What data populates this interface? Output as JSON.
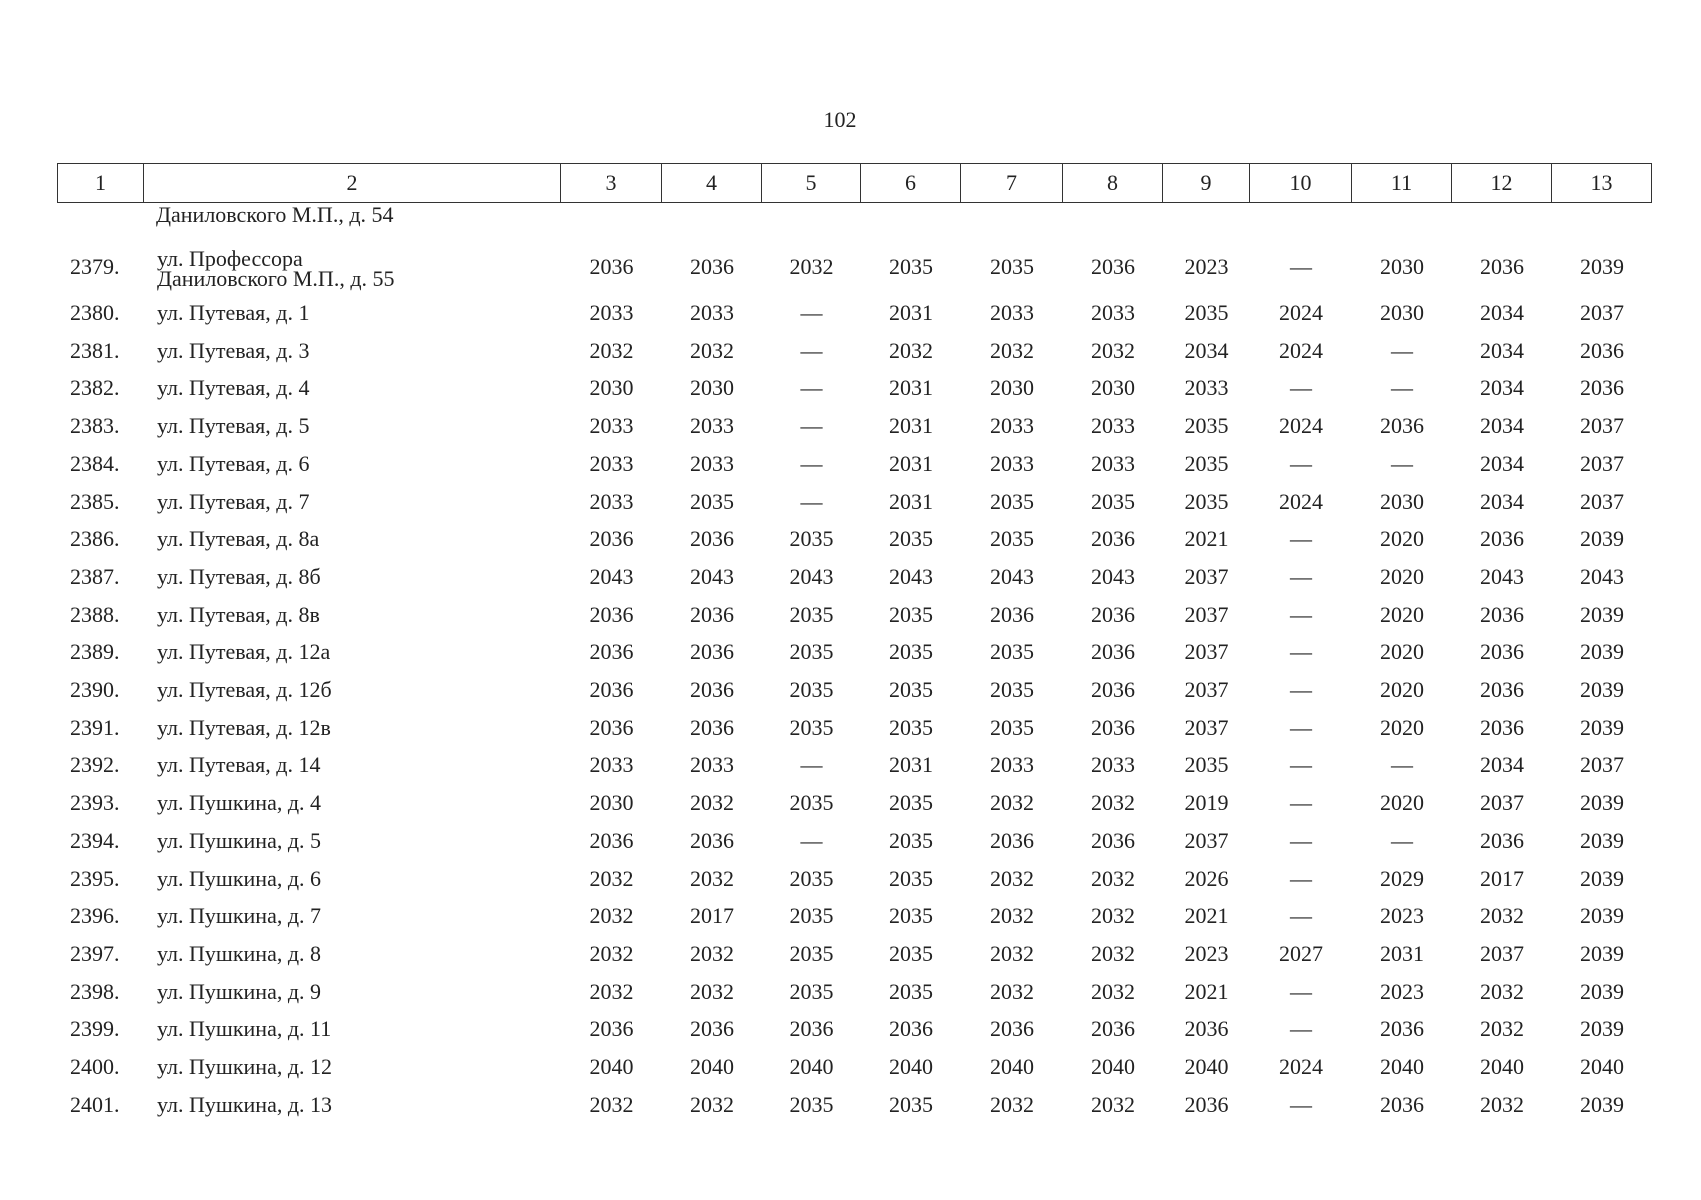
{
  "page_number": "102",
  "table": {
    "header": [
      "1",
      "2",
      "3",
      "4",
      "5",
      "6",
      "7",
      "8",
      "9",
      "10",
      "11",
      "12",
      "13"
    ],
    "continuation": "Даниловского М.П., д. 54",
    "rows": [
      [
        "2379.",
        "ул. Профессора\nДаниловского М.П., д. 55",
        "2036",
        "2036",
        "2032",
        "2035",
        "2035",
        "2036",
        "2023",
        "—",
        "2030",
        "2036",
        "2039"
      ],
      [
        "2380.",
        "ул. Путевая, д. 1",
        "2033",
        "2033",
        "—",
        "2031",
        "2033",
        "2033",
        "2035",
        "2024",
        "2030",
        "2034",
        "2037"
      ],
      [
        "2381.",
        "ул. Путевая, д. 3",
        "2032",
        "2032",
        "—",
        "2032",
        "2032",
        "2032",
        "2034",
        "2024",
        "—",
        "2034",
        "2036"
      ],
      [
        "2382.",
        "ул. Путевая, д. 4",
        "2030",
        "2030",
        "—",
        "2031",
        "2030",
        "2030",
        "2033",
        "—",
        "—",
        "2034",
        "2036"
      ],
      [
        "2383.",
        "ул. Путевая, д. 5",
        "2033",
        "2033",
        "—",
        "2031",
        "2033",
        "2033",
        "2035",
        "2024",
        "2036",
        "2034",
        "2037"
      ],
      [
        "2384.",
        "ул. Путевая, д. 6",
        "2033",
        "2033",
        "—",
        "2031",
        "2033",
        "2033",
        "2035",
        "—",
        "—",
        "2034",
        "2037"
      ],
      [
        "2385.",
        "ул. Путевая, д. 7",
        "2033",
        "2035",
        "—",
        "2031",
        "2035",
        "2035",
        "2035",
        "2024",
        "2030",
        "2034",
        "2037"
      ],
      [
        "2386.",
        "ул. Путевая, д. 8а",
        "2036",
        "2036",
        "2035",
        "2035",
        "2035",
        "2036",
        "2021",
        "—",
        "2020",
        "2036",
        "2039"
      ],
      [
        "2387.",
        "ул. Путевая, д. 8б",
        "2043",
        "2043",
        "2043",
        "2043",
        "2043",
        "2043",
        "2037",
        "—",
        "2020",
        "2043",
        "2043"
      ],
      [
        "2388.",
        "ул. Путевая, д. 8в",
        "2036",
        "2036",
        "2035",
        "2035",
        "2036",
        "2036",
        "2037",
        "—",
        "2020",
        "2036",
        "2039"
      ],
      [
        "2389.",
        "ул. Путевая, д. 12а",
        "2036",
        "2036",
        "2035",
        "2035",
        "2035",
        "2036",
        "2037",
        "—",
        "2020",
        "2036",
        "2039"
      ],
      [
        "2390.",
        "ул. Путевая, д. 12б",
        "2036",
        "2036",
        "2035",
        "2035",
        "2035",
        "2036",
        "2037",
        "—",
        "2020",
        "2036",
        "2039"
      ],
      [
        "2391.",
        "ул. Путевая, д. 12в",
        "2036",
        "2036",
        "2035",
        "2035",
        "2035",
        "2036",
        "2037",
        "—",
        "2020",
        "2036",
        "2039"
      ],
      [
        "2392.",
        "ул. Путевая, д. 14",
        "2033",
        "2033",
        "—",
        "2031",
        "2033",
        "2033",
        "2035",
        "—",
        "—",
        "2034",
        "2037"
      ],
      [
        "2393.",
        "ул. Пушкина, д. 4",
        "2030",
        "2032",
        "2035",
        "2035",
        "2032",
        "2032",
        "2019",
        "—",
        "2020",
        "2037",
        "2039"
      ],
      [
        "2394.",
        "ул. Пушкина, д. 5",
        "2036",
        "2036",
        "—",
        "2035",
        "2036",
        "2036",
        "2037",
        "—",
        "—",
        "2036",
        "2039"
      ],
      [
        "2395.",
        "ул. Пушкина, д. 6",
        "2032",
        "2032",
        "2035",
        "2035",
        "2032",
        "2032",
        "2026",
        "—",
        "2029",
        "2017",
        "2039"
      ],
      [
        "2396.",
        "ул. Пушкина, д. 7",
        "2032",
        "2017",
        "2035",
        "2035",
        "2032",
        "2032",
        "2021",
        "—",
        "2023",
        "2032",
        "2039"
      ],
      [
        "2397.",
        "ул. Пушкина, д. 8",
        "2032",
        "2032",
        "2035",
        "2035",
        "2032",
        "2032",
        "2023",
        "2027",
        "2031",
        "2037",
        "2039"
      ],
      [
        "2398.",
        "ул. Пушкина, д. 9",
        "2032",
        "2032",
        "2035",
        "2035",
        "2032",
        "2032",
        "2021",
        "—",
        "2023",
        "2032",
        "2039"
      ],
      [
        "2399.",
        "ул. Пушкина, д. 11",
        "2036",
        "2036",
        "2036",
        "2036",
        "2036",
        "2036",
        "2036",
        "—",
        "2036",
        "2032",
        "2039"
      ],
      [
        "2400.",
        "ул. Пушкина, д. 12",
        "2040",
        "2040",
        "2040",
        "2040",
        "2040",
        "2040",
        "2040",
        "2024",
        "2040",
        "2040",
        "2040"
      ],
      [
        "2401.",
        "ул. Пушкина, д. 13",
        "2032",
        "2032",
        "2035",
        "2035",
        "2032",
        "2032",
        "2036",
        "—",
        "2036",
        "2032",
        "2039"
      ]
    ]
  }
}
